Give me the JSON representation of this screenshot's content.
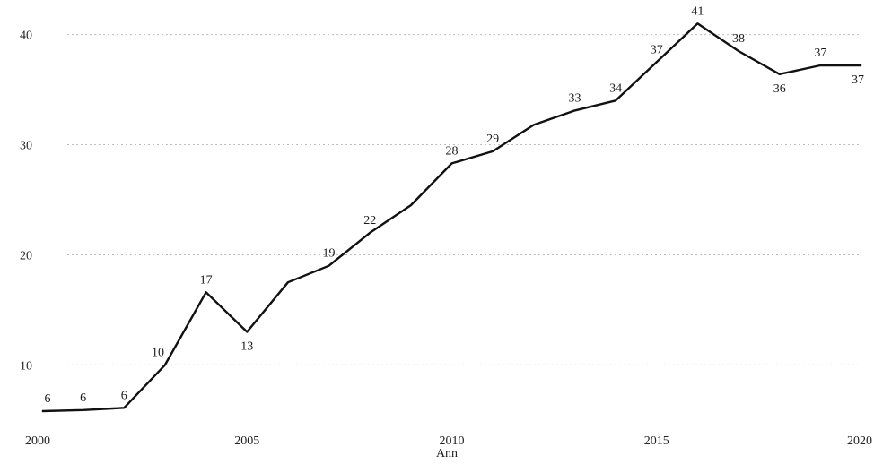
{
  "chart_data": {
    "type": "line",
    "title": "",
    "xlabel": "Ann",
    "ylabel": "",
    "xlim": [
      2000,
      2020
    ],
    "ylim": [
      4.5,
      42
    ],
    "yticks": [
      10,
      20,
      30,
      40
    ],
    "xticks": [
      2000,
      2005,
      2010,
      2015,
      2020
    ],
    "grid": "horizontal-dotted",
    "series": [
      {
        "x": [
          2000,
          2001,
          2002,
          2003,
          2004,
          2005,
          2006,
          2007,
          2008,
          2009,
          2010,
          2011,
          2012,
          2013,
          2014,
          2015,
          2016,
          2017,
          2018,
          2019,
          2020
        ],
        "y": [
          5.8,
          5.9,
          6.1,
          10,
          16.6,
          13,
          17.5,
          19,
          22,
          24.5,
          28.3,
          29.4,
          31.8,
          33.1,
          34,
          37.5,
          41,
          38.5,
          36.4,
          37.2,
          37.2
        ],
        "labels": [
          "6",
          "6",
          "6",
          "10",
          "17",
          "13",
          "",
          "19",
          "22",
          "",
          "28",
          "29",
          "",
          "33",
          "34",
          "37",
          "41",
          "38",
          "36",
          "37",
          "37"
        ],
        "color": "#111111"
      }
    ]
  }
}
